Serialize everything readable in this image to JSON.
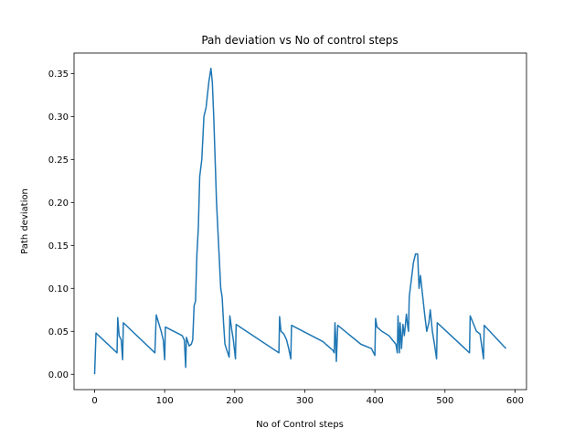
{
  "chart_data": {
    "type": "line",
    "title": "Pah deviation vs No of control steps",
    "x_label": "No of Control steps",
    "y_label": "Path deviation",
    "xlim": [
      -29.35,
      616.35
    ],
    "ylim": [
      -0.0178,
      0.3738
    ],
    "xticks": [
      0,
      100,
      200,
      300,
      400,
      500,
      600
    ],
    "yticks": [
      {
        "value": 0,
        "label": "0.00"
      },
      0.05,
      {
        "value": 0.1,
        "label": "0.10"
      },
      0.15,
      {
        "value": 0.2,
        "label": "0.20"
      },
      0.25,
      {
        "value": 0.3,
        "label": "0.30"
      },
      0.35
    ],
    "series": [
      {
        "name": "Path deviation",
        "color": "#1f77b4",
        "x": [
          0,
          2,
          32,
          33,
          35,
          38,
          40,
          41,
          86,
          88,
          95,
          98,
          100,
          101,
          125,
          128,
          130,
          131,
          135,
          138,
          140,
          142,
          144,
          146,
          148,
          150,
          153,
          156,
          159,
          163,
          166,
          168,
          170,
          174,
          177,
          180,
          182,
          184,
          186,
          190,
          192,
          193,
          196,
          198,
          201,
          202,
          263,
          264,
          266,
          270,
          274,
          277,
          280,
          281,
          326,
          330,
          340,
          342,
          343,
          344,
          345,
          347,
          380,
          395,
          400,
          401,
          403,
          410,
          420,
          430,
          432,
          433,
          435,
          436,
          438,
          440,
          442,
          445,
          447,
          448,
          449,
          452,
          455,
          458,
          461,
          463,
          465,
          467,
          469,
          471,
          474,
          477,
          479,
          482,
          485,
          488,
          489,
          535,
          536,
          540,
          545,
          550,
          553,
          555,
          556,
          587
        ],
        "values": [
          0.0,
          0.048,
          0.025,
          0.066,
          0.045,
          0.04,
          0.017,
          0.06,
          0.025,
          0.069,
          0.05,
          0.04,
          0.017,
          0.055,
          0.045,
          0.04,
          0.008,
          0.043,
          0.033,
          0.035,
          0.04,
          0.08,
          0.085,
          0.14,
          0.17,
          0.23,
          0.25,
          0.3,
          0.31,
          0.34,
          0.356,
          0.34,
          0.3,
          0.2,
          0.15,
          0.1,
          0.09,
          0.06,
          0.035,
          0.025,
          0.02,
          0.068,
          0.05,
          0.04,
          0.018,
          0.058,
          0.025,
          0.067,
          0.05,
          0.047,
          0.04,
          0.03,
          0.018,
          0.057,
          0.038,
          0.035,
          0.028,
          0.025,
          0.06,
          0.045,
          0.015,
          0.057,
          0.035,
          0.03,
          0.022,
          0.065,
          0.055,
          0.05,
          0.045,
          0.035,
          0.025,
          0.068,
          0.025,
          0.06,
          0.03,
          0.058,
          0.045,
          0.07,
          0.055,
          0.05,
          0.09,
          0.11,
          0.13,
          0.14,
          0.14,
          0.1,
          0.115,
          0.1,
          0.085,
          0.07,
          0.05,
          0.06,
          0.075,
          0.05,
          0.035,
          0.018,
          0.06,
          0.025,
          0.068,
          0.06,
          0.05,
          0.047,
          0.03,
          0.018,
          0.057,
          0.03
        ]
      }
    ]
  }
}
